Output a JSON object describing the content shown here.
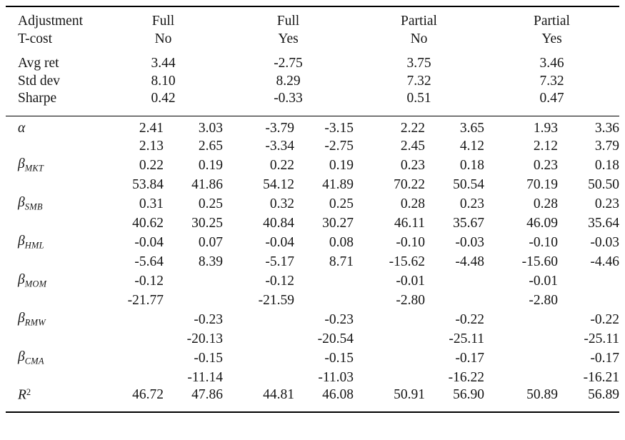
{
  "table": {
    "header_rows": [
      {
        "label": "Adjustment",
        "key": "adjustment"
      },
      {
        "label": "T-cost",
        "key": "tcost"
      }
    ],
    "groups": [
      {
        "adjustment": "Full",
        "tcost": "No"
      },
      {
        "adjustment": "Full",
        "tcost": "Yes"
      },
      {
        "adjustment": "Partial",
        "tcost": "No"
      },
      {
        "adjustment": "Partial",
        "tcost": "Yes"
      }
    ],
    "summary_rows": [
      {
        "label": "Avg ret",
        "values": [
          "3.44",
          "-2.75",
          "3.75",
          "3.46"
        ]
      },
      {
        "label": "Std dev",
        "values": [
          "8.10",
          "8.29",
          "7.32",
          "7.32"
        ]
      },
      {
        "label": "Sharpe",
        "values": [
          "0.42",
          "-0.33",
          "0.51",
          "0.47"
        ]
      }
    ],
    "body_rows": [
      {
        "label": {
          "base": "α"
        },
        "cells": [
          "2.41",
          "3.03",
          "-3.79",
          "-3.15",
          "2.22",
          "3.65",
          "1.93",
          "3.36"
        ]
      },
      {
        "label": null,
        "cells": [
          "2.13",
          "2.65",
          "-3.34",
          "-2.75",
          "2.45",
          "4.12",
          "2.12",
          "3.79"
        ]
      },
      {
        "label": {
          "base": "β",
          "sub": "MKT"
        },
        "cells": [
          "0.22",
          "0.19",
          "0.22",
          "0.19",
          "0.23",
          "0.18",
          "0.23",
          "0.18"
        ]
      },
      {
        "label": null,
        "cells": [
          "53.84",
          "41.86",
          "54.12",
          "41.89",
          "70.22",
          "50.54",
          "70.19",
          "50.50"
        ]
      },
      {
        "label": {
          "base": "β",
          "sub": "SMB"
        },
        "cells": [
          "0.31",
          "0.25",
          "0.32",
          "0.25",
          "0.28",
          "0.23",
          "0.28",
          "0.23"
        ]
      },
      {
        "label": null,
        "cells": [
          "40.62",
          "30.25",
          "40.84",
          "30.27",
          "46.11",
          "35.67",
          "46.09",
          "35.64"
        ]
      },
      {
        "label": {
          "base": "β",
          "sub": "HML"
        },
        "cells": [
          "-0.04",
          "0.07",
          "-0.04",
          "0.08",
          "-0.10",
          "-0.03",
          "-0.10",
          "-0.03"
        ]
      },
      {
        "label": null,
        "cells": [
          "-5.64",
          "8.39",
          "-5.17",
          "8.71",
          "-15.62",
          "-4.48",
          "-15.60",
          "-4.46"
        ]
      },
      {
        "label": {
          "base": "β",
          "sub": "MOM"
        },
        "cells": [
          "-0.12",
          "",
          "-0.12",
          "",
          "-0.01",
          "",
          "-0.01",
          ""
        ]
      },
      {
        "label": null,
        "cells": [
          "-21.77",
          "",
          "-21.59",
          "",
          "-2.80",
          "",
          "-2.80",
          ""
        ]
      },
      {
        "label": {
          "base": "β",
          "sub": "RMW"
        },
        "cells": [
          "",
          "-0.23",
          "",
          "-0.23",
          "",
          "-0.22",
          "",
          "-0.22"
        ]
      },
      {
        "label": null,
        "cells": [
          "",
          "-20.13",
          "",
          "-20.54",
          "",
          "-25.11",
          "",
          "-25.11"
        ]
      },
      {
        "label": {
          "base": "β",
          "sub": "CMA"
        },
        "cells": [
          "",
          "-0.15",
          "",
          "-0.15",
          "",
          "-0.17",
          "",
          "-0.17"
        ]
      },
      {
        "label": null,
        "cells": [
          "",
          "-11.14",
          "",
          "-11.03",
          "",
          "-16.22",
          "",
          "-16.21"
        ]
      },
      {
        "label": {
          "base": "R",
          "sup": "2"
        },
        "cells": [
          "46.72",
          "47.86",
          "44.81",
          "46.08",
          "50.91",
          "56.90",
          "50.89",
          "56.89"
        ]
      }
    ]
  }
}
